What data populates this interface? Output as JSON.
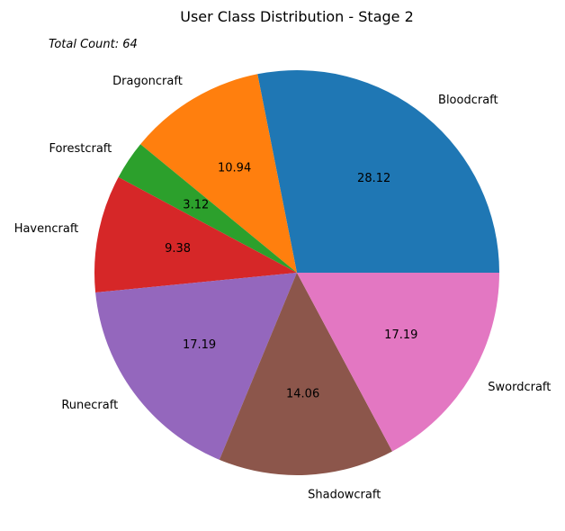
{
  "chart_data": {
    "type": "pie",
    "title": "User Class Distribution - Stage 2",
    "annotation": "Total Count: 64",
    "categories": [
      "Bloodcraft",
      "Dragoncraft",
      "Forestcraft",
      "Havencraft",
      "Runecraft",
      "Shadowcraft",
      "Swordcraft"
    ],
    "values": [
      28.12,
      10.94,
      3.12,
      9.38,
      17.19,
      14.06,
      17.19
    ],
    "value_labels": [
      "28.12",
      "10.94",
      "3.12",
      "9.38",
      "17.19",
      "14.06",
      "17.19"
    ],
    "colors": [
      "#1f77b4",
      "#ff7f0e",
      "#2ca02c",
      "#d62728",
      "#9467bd",
      "#8c564b",
      "#e377c2"
    ],
    "start_angle_deg": 0,
    "direction": "counterclockwise",
    "legend": "none"
  }
}
